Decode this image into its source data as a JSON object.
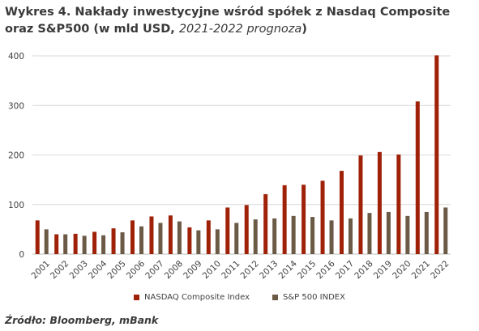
{
  "title": {
    "main": "Wykres 4. Nakłady inwestycyjne wśród spółek z Nasdaq Composite oraz S&P500 (w mld USD, ",
    "italic": "2021-2022 prognoza",
    "end": ")"
  },
  "source": "Źródło: Bloomberg, mBank",
  "colors": {
    "nasdaq": "#9e2108",
    "sp500": "#6b5a45",
    "grid": "#d9d9d9"
  },
  "chart_data": {
    "type": "bar",
    "categories": [
      "2001",
      "2002",
      "2003",
      "2004",
      "2005",
      "2006",
      "2007",
      "2008",
      "2009",
      "2010",
      "2011",
      "2012",
      "2013",
      "2014",
      "2015",
      "2016",
      "2017",
      "2018",
      "2019",
      "2020",
      "2021",
      "2022"
    ],
    "series": [
      {
        "name": "NASDAQ Composite Index",
        "values": [
          68,
          40,
          41,
          45,
          52,
          68,
          76,
          78,
          54,
          68,
          94,
          99,
          121,
          139,
          140,
          148,
          168,
          199,
          206,
          201,
          308,
          401
        ]
      },
      {
        "name": "S&P 500 INDEX",
        "values": [
          50,
          40,
          37,
          38,
          44,
          56,
          63,
          66,
          48,
          50,
          63,
          70,
          72,
          77,
          75,
          68,
          72,
          83,
          85,
          77,
          85,
          94
        ]
      }
    ],
    "ylim": [
      0,
      400
    ],
    "yticks": [
      "0",
      "100",
      "200",
      "300",
      "400"
    ],
    "grid": true,
    "legend": "bottom"
  }
}
